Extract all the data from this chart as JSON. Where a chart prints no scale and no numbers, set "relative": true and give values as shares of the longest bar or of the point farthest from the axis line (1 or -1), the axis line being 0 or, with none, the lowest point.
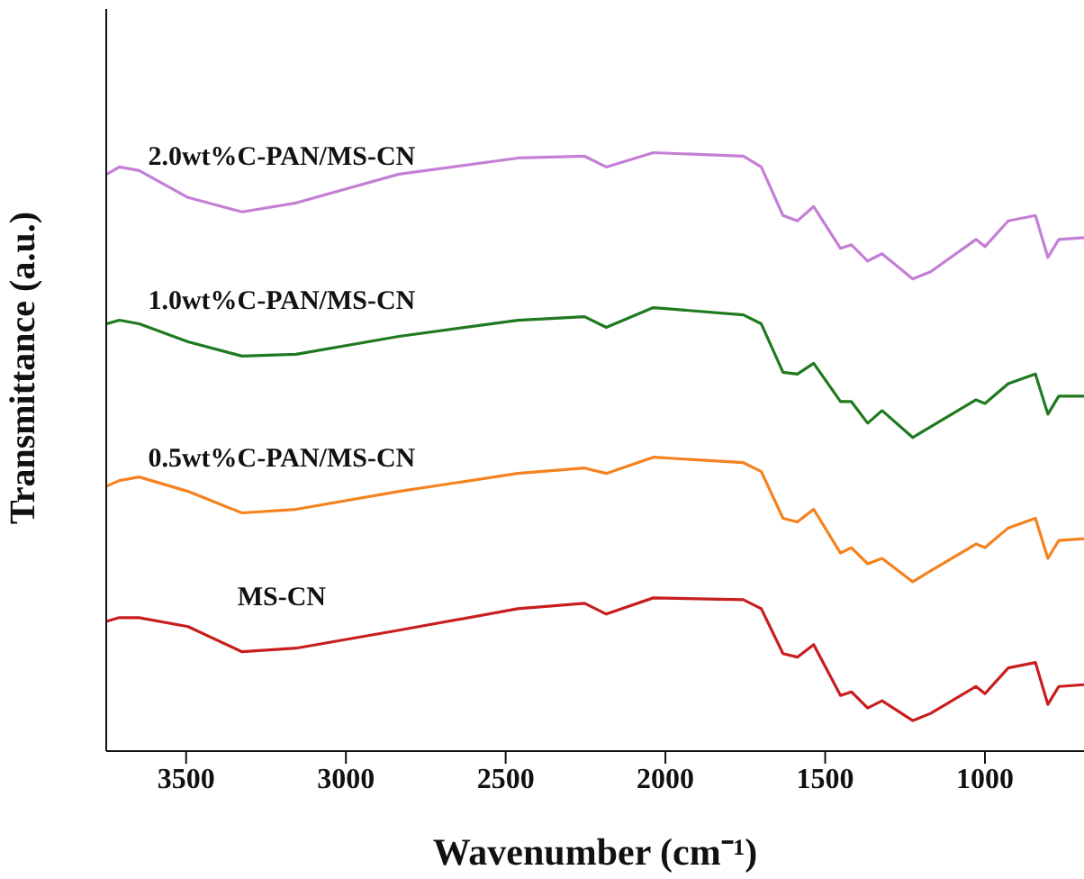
{
  "chart_data": {
    "type": "line",
    "relative": true,
    "xlabel": "Wavenumber (cm⁻¹)",
    "ylabel": "Transmittance (a.u.)",
    "xlim": [
      3750,
      690
    ],
    "xticks": [
      3500,
      3000,
      2500,
      2000,
      1500,
      1000
    ],
    "x": [
      3748,
      3709,
      3647,
      3494,
      3325,
      3156,
      2834,
      2462,
      2253,
      2185,
      2038,
      1756,
      1700,
      1632,
      1587,
      1536,
      1452,
      1418,
      1367,
      1322,
      1226,
      1170,
      1028,
      1000,
      927,
      842,
      803,
      769,
      690
    ],
    "series": [
      {
        "name": "2.0wt%C-PAN/MS-CN",
        "color": "#c47fd5",
        "values": [
          0.964,
          0.976,
          0.97,
          0.925,
          0.901,
          0.916,
          0.964,
          0.991,
          0.994,
          0.976,
          1.0,
          0.994,
          0.976,
          0.895,
          0.886,
          0.91,
          0.84,
          0.846,
          0.819,
          0.831,
          0.789,
          0.801,
          0.855,
          0.843,
          0.886,
          0.895,
          0.825,
          0.855,
          0.858
        ]
      },
      {
        "name": "1.0wt%C-PAN/MS-CN",
        "color": "#1f7a1f",
        "values": [
          0.714,
          0.72,
          0.714,
          0.684,
          0.66,
          0.663,
          0.693,
          0.72,
          0.726,
          0.708,
          0.741,
          0.729,
          0.714,
          0.633,
          0.63,
          0.648,
          0.584,
          0.584,
          0.548,
          0.569,
          0.524,
          0.542,
          0.587,
          0.581,
          0.614,
          0.63,
          0.563,
          0.593,
          0.593
        ]
      },
      {
        "name": "0.5wt%C-PAN/MS-CN",
        "color": "#f5821f",
        "values": [
          0.443,
          0.452,
          0.458,
          0.434,
          0.398,
          0.404,
          0.434,
          0.464,
          0.473,
          0.464,
          0.491,
          0.482,
          0.467,
          0.389,
          0.383,
          0.404,
          0.331,
          0.34,
          0.313,
          0.322,
          0.283,
          0.301,
          0.346,
          0.34,
          0.373,
          0.389,
          0.322,
          0.352,
          0.355
        ]
      },
      {
        "name": "MS-CN",
        "color": "#c81e1e",
        "values": [
          0.217,
          0.223,
          0.223,
          0.208,
          0.166,
          0.172,
          0.202,
          0.238,
          0.247,
          0.229,
          0.256,
          0.253,
          0.238,
          0.163,
          0.157,
          0.178,
          0.093,
          0.099,
          0.072,
          0.084,
          0.051,
          0.063,
          0.108,
          0.096,
          0.139,
          0.148,
          0.078,
          0.108,
          0.111
        ]
      }
    ]
  }
}
